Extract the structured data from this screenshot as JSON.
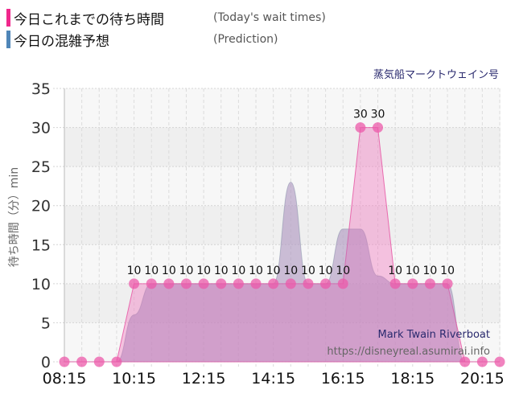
{
  "legend": [
    {
      "label_jp": "今日これまでの待ち時間",
      "label_en": "(Today's wait times)",
      "color": "#f0288c"
    },
    {
      "label_jp": "今日の混雑予想",
      "label_en": "(Prediction)",
      "color": "#4f86b8"
    }
  ],
  "ride_name_jp": "蒸気船マークトウェイン号",
  "watermark": {
    "ride_name_en": "Mark Twain Riverboat",
    "url": "https://disneyreal.asumirai.info"
  },
  "chart_data": {
    "type": "area",
    "title": "蒸気船マークトウェイン号",
    "xlabel": "",
    "ylabel": "待ち時間（分）min",
    "ylim": [
      0,
      35
    ],
    "yticks": [
      0,
      5,
      10,
      15,
      20,
      25,
      30,
      35
    ],
    "xtick_labels": [
      "08:15",
      "10:15",
      "12:15",
      "14:15",
      "16:15",
      "18:15",
      "20:15"
    ],
    "grid": true,
    "x": [
      "08:15",
      "08:45",
      "09:15",
      "09:45",
      "10:15",
      "10:45",
      "11:15",
      "11:45",
      "12:15",
      "12:45",
      "13:15",
      "13:45",
      "14:15",
      "14:45",
      "15:15",
      "15:45",
      "16:15",
      "16:45",
      "17:15",
      "17:45",
      "18:15",
      "18:45",
      "19:15",
      "19:45",
      "20:15",
      "20:45"
    ],
    "series": [
      {
        "name": "今日これまでの待ち時間 (Today's wait times)",
        "color": "#f0288c",
        "values": [
          0,
          0,
          0,
          0,
          10,
          10,
          10,
          10,
          10,
          10,
          10,
          10,
          10,
          10,
          10,
          10,
          10,
          30,
          30,
          10,
          10,
          10,
          10,
          0,
          0,
          0
        ],
        "data_labels": [
          "",
          "",
          "",
          "",
          "10",
          "10",
          "10",
          "10",
          "10",
          "10",
          "10",
          "10",
          "10",
          "10",
          "10",
          "10",
          "10",
          "30",
          "30",
          "10",
          "10",
          "10",
          "10",
          "",
          "",
          ""
        ]
      },
      {
        "name": "今日の混雑予想 (Prediction)",
        "color": "#4f86b8",
        "values": [
          0,
          0,
          0,
          0,
          6,
          10,
          10,
          10,
          10,
          10,
          10,
          10,
          10,
          23,
          10,
          10,
          17,
          17,
          11,
          10,
          10,
          10,
          10,
          0,
          0,
          0
        ]
      }
    ]
  }
}
